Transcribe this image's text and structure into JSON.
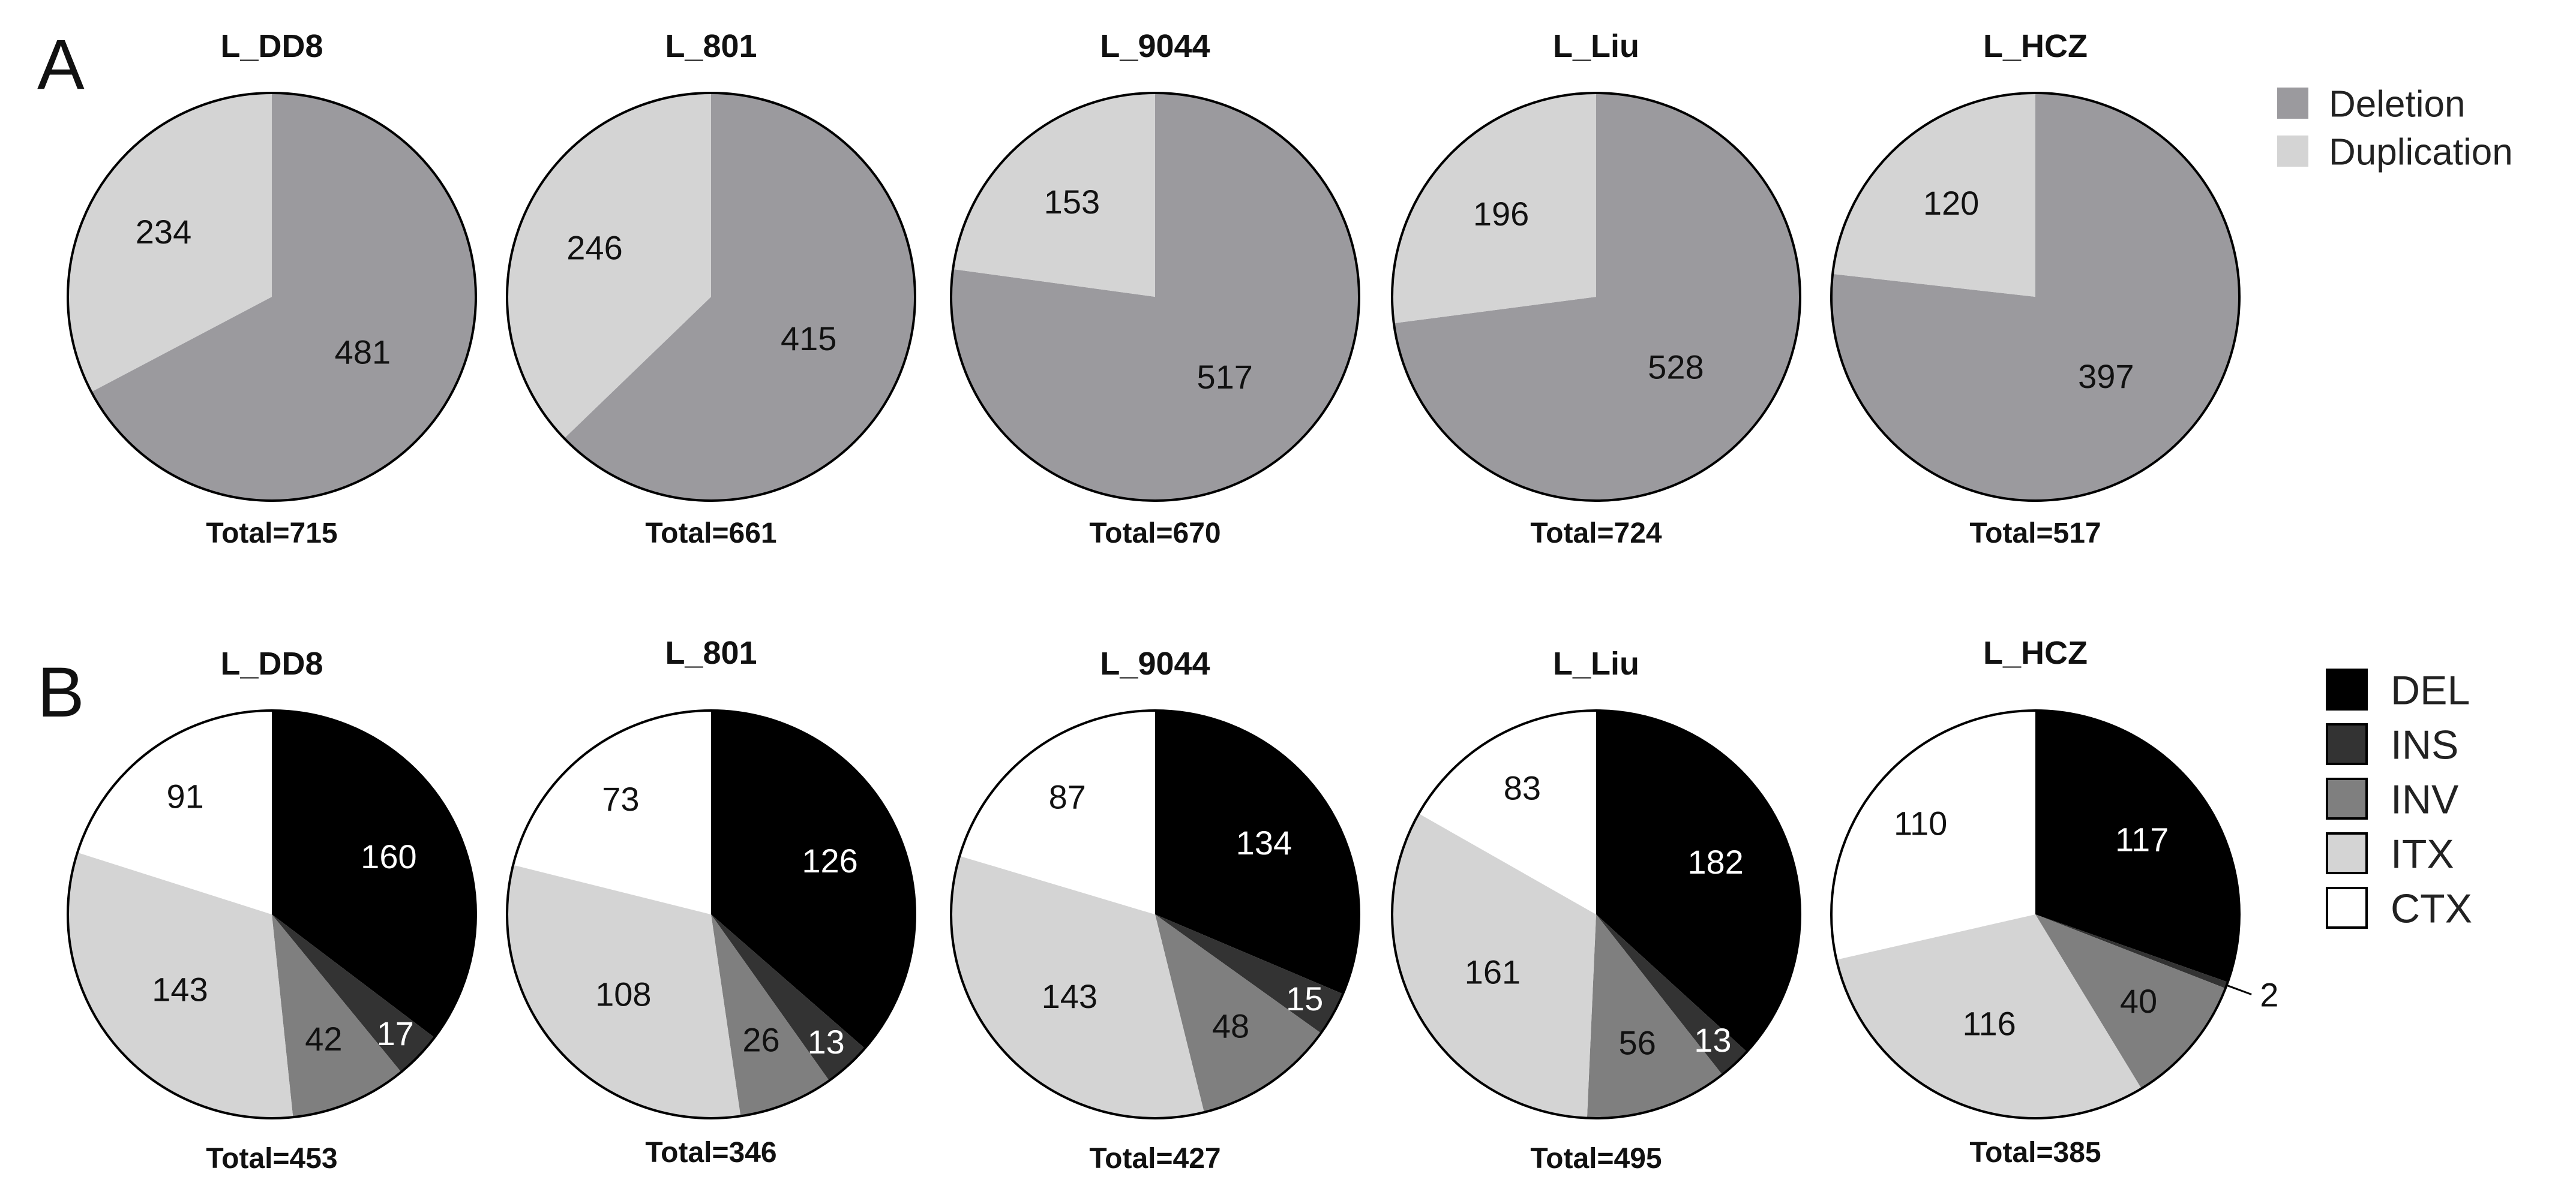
{
  "figure": {
    "panels": [
      {
        "letter": "A"
      },
      {
        "letter": "B"
      }
    ]
  },
  "chart_data": [
    {
      "type": "pie",
      "panel": "A",
      "legend": [
        {
          "name": "Deletion",
          "color": "#9b9a9e"
        },
        {
          "name": "Duplication",
          "color": "#d4d4d4"
        }
      ],
      "pies": [
        {
          "title": "L_DD8",
          "total_label": "Total=715",
          "values": [
            481,
            234
          ]
        },
        {
          "title": "L_801",
          "total_label": "Total=661",
          "values": [
            415,
            246
          ]
        },
        {
          "title": "L_9044",
          "total_label": "Total=670",
          "values": [
            517,
            153
          ]
        },
        {
          "title": "L_Liu",
          "total_label": "Total=724",
          "values": [
            528,
            196
          ]
        },
        {
          "title": "L_HCZ",
          "total_label": "Total=517",
          "values": [
            397,
            120
          ]
        }
      ]
    },
    {
      "type": "pie",
      "panel": "B",
      "legend": [
        {
          "name": "DEL",
          "color": "#000000"
        },
        {
          "name": "INS",
          "color": "#333333"
        },
        {
          "name": "INV",
          "color": "#7f7f7f"
        },
        {
          "name": "ITX",
          "color": "#d4d4d4"
        },
        {
          "name": "CTX",
          "color": "#ffffff"
        }
      ],
      "pies": [
        {
          "title": "L_DD8",
          "total_label": "Total=453",
          "values": [
            160,
            17,
            42,
            143,
            91
          ]
        },
        {
          "title": "L_801",
          "total_label": "Total=346",
          "values": [
            126,
            13,
            26,
            108,
            73
          ]
        },
        {
          "title": "L_9044",
          "total_label": "Total=427",
          "values": [
            134,
            15,
            48,
            143,
            87
          ]
        },
        {
          "title": "L_Liu",
          "total_label": "Total=495",
          "values": [
            182,
            13,
            56,
            161,
            83
          ]
        },
        {
          "title": "L_HCZ",
          "total_label": "Total=385",
          "values": [
            117,
            2,
            40,
            116,
            110
          ]
        }
      ]
    }
  ]
}
